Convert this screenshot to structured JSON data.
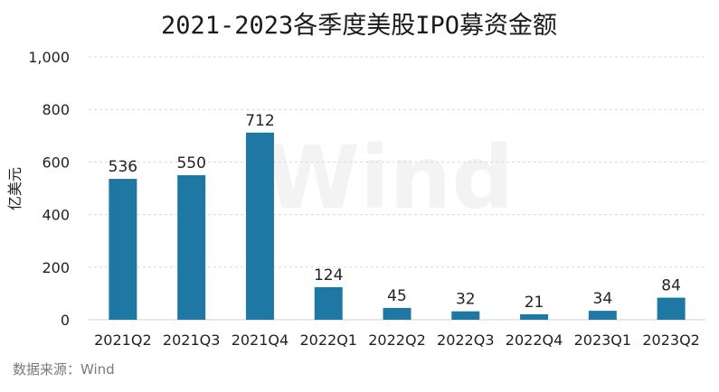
{
  "chart_data": {
    "type": "bar",
    "title": "2021-2023各季度美股IPO募资金额",
    "ylabel": "亿美元",
    "xlabel": "",
    "categories": [
      "2021Q2",
      "2021Q3",
      "2021Q4",
      "2022Q1",
      "2022Q2",
      "2022Q3",
      "2022Q4",
      "2023Q1",
      "2023Q2"
    ],
    "values": [
      536,
      550,
      712,
      124,
      45,
      32,
      21,
      34,
      84
    ],
    "ylim": [
      0,
      1000
    ],
    "yticks": [
      0,
      200,
      400,
      600,
      800,
      1000
    ],
    "ytick_labels": [
      "0",
      "200",
      "400",
      "600",
      "800",
      "1,000"
    ],
    "grid": true,
    "bar_color": "#1f77a4",
    "data_labels": true,
    "source": "数据来源：Wind",
    "watermark": "Wind"
  }
}
